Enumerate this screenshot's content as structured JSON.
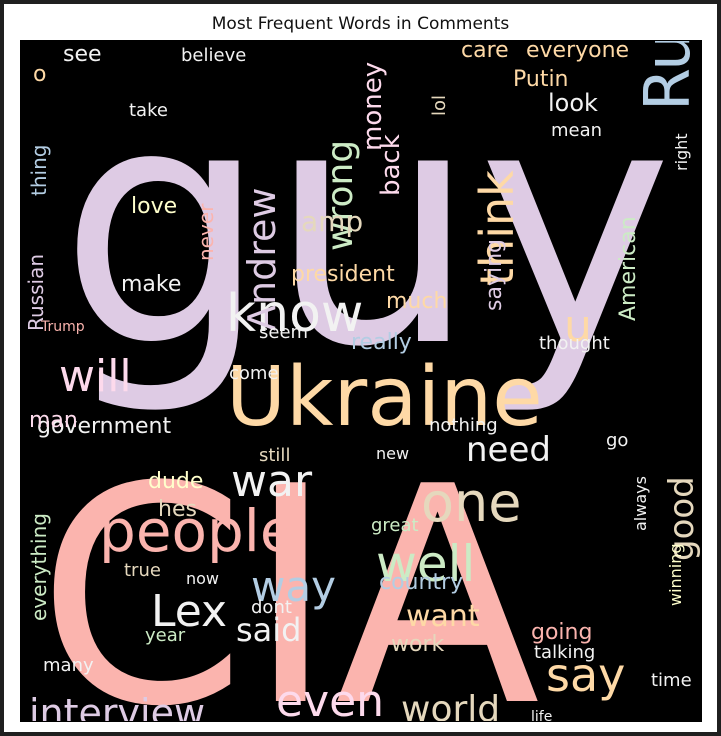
{
  "chart_data": {
    "type": "word_cloud",
    "title": "Most Frequent Words in Comments",
    "palette": [
      "#fbb4ae",
      "#b3cde3",
      "#ccebc5",
      "#decbe4",
      "#fed9a6",
      "#ffffcc",
      "#e5d8bd",
      "#fddaec",
      "#f2f2f2"
    ],
    "background": "#000000",
    "words": [
      {
        "text": "guy",
        "size": 330,
        "color": "#decbe4"
      },
      {
        "text": "CIA",
        "size": 300,
        "color": "#fbb4ae"
      },
      {
        "text": "Ukraine",
        "size": 82,
        "color": "#fed9a6"
      },
      {
        "text": "Russia",
        "size": 62,
        "color": "#b3cde3"
      },
      {
        "text": "people",
        "size": 58,
        "color": "#fbb4ae"
      },
      {
        "text": "know",
        "size": 52,
        "color": "#f2f2f2"
      },
      {
        "text": "one",
        "size": 54,
        "color": "#e5d8bd"
      },
      {
        "text": "well",
        "size": 50,
        "color": "#ccebc5"
      },
      {
        "text": "even",
        "size": 44,
        "color": "#fddaec"
      },
      {
        "text": "war",
        "size": 44,
        "color": "#f2f2f2"
      },
      {
        "text": "say",
        "size": 46,
        "color": "#fed9a6"
      },
      {
        "text": "think",
        "size": 46,
        "color": "#fed9a6"
      },
      {
        "text": "way",
        "size": 42,
        "color": "#b3cde3"
      },
      {
        "text": "will",
        "size": 44,
        "color": "#fddaec"
      },
      {
        "text": "Lex",
        "size": 44,
        "color": "#f2f2f2"
      },
      {
        "text": "Andrew",
        "size": 38,
        "color": "#decbe4"
      },
      {
        "text": "wrong",
        "size": 36,
        "color": "#ccebc5"
      },
      {
        "text": "world",
        "size": 36,
        "color": "#e5d8bd"
      },
      {
        "text": "interview",
        "size": 38,
        "color": "#decbe4"
      },
      {
        "text": "u",
        "size": 44,
        "color": "#fed9a6"
      },
      {
        "text": "good",
        "size": 34,
        "color": "#e5d8bd"
      },
      {
        "text": "need",
        "size": 34,
        "color": "#f2f2f2"
      },
      {
        "text": "said",
        "size": 32,
        "color": "#f2f2f2"
      },
      {
        "text": "want",
        "size": 30,
        "color": "#fed9a6"
      },
      {
        "text": "government",
        "size": 22,
        "color": "#f2f2f2"
      },
      {
        "text": "president",
        "size": 22,
        "color": "#fed9a6"
      },
      {
        "text": "amp",
        "size": 28,
        "color": "#e5d8bd"
      },
      {
        "text": "money",
        "size": 26,
        "color": "#fddaec"
      },
      {
        "text": "back",
        "size": 26,
        "color": "#fddaec"
      },
      {
        "text": "saying",
        "size": 22,
        "color": "#decbe4"
      },
      {
        "text": "American",
        "size": 22,
        "color": "#ccebc5"
      },
      {
        "text": "much",
        "size": 22,
        "color": "#fed9a6"
      },
      {
        "text": "look",
        "size": 24,
        "color": "#f2f2f2"
      },
      {
        "text": "Putin",
        "size": 22,
        "color": "#fed9a6"
      },
      {
        "text": "care",
        "size": 22,
        "color": "#fed9a6"
      },
      {
        "text": "everyone",
        "size": 22,
        "color": "#fed9a6"
      },
      {
        "text": "really",
        "size": 22,
        "color": "#b3cde3"
      },
      {
        "text": "dude",
        "size": 22,
        "color": "#ffffcc"
      },
      {
        "text": "hes",
        "size": 22,
        "color": "#e5d8bd"
      },
      {
        "text": "country",
        "size": 22,
        "color": "#b3cde3"
      },
      {
        "text": "going",
        "size": 22,
        "color": "#fbb4ae"
      },
      {
        "text": "work",
        "size": 22,
        "color": "#e5d8bd"
      },
      {
        "text": "man",
        "size": 22,
        "color": "#fddaec"
      },
      {
        "text": "everything",
        "size": 20,
        "color": "#ccebc5"
      },
      {
        "text": "make",
        "size": 22,
        "color": "#f2f2f2"
      },
      {
        "text": "love",
        "size": 22,
        "color": "#ffffcc"
      },
      {
        "text": "never",
        "size": 20,
        "color": "#fbb4ae"
      },
      {
        "text": "see",
        "size": 22,
        "color": "#f2f2f2"
      },
      {
        "text": "thing",
        "size": 20,
        "color": "#b3cde3"
      },
      {
        "text": "Russian",
        "size": 20,
        "color": "#decbe4"
      },
      {
        "text": "take",
        "size": 18,
        "color": "#f2f2f2"
      },
      {
        "text": "believe",
        "size": 18,
        "color": "#f2f2f2"
      },
      {
        "text": "mean",
        "size": 18,
        "color": "#f2f2f2"
      },
      {
        "text": "right",
        "size": 16,
        "color": "#f2f2f2"
      },
      {
        "text": "lol",
        "size": 18,
        "color": "#e5d8bd"
      },
      {
        "text": "still",
        "size": 18,
        "color": "#e5d8bd"
      },
      {
        "text": "come",
        "size": 18,
        "color": "#f2f2f2"
      },
      {
        "text": "seem",
        "size": 18,
        "color": "#f2f2f2"
      },
      {
        "text": "thought",
        "size": 18,
        "color": "#f2f2f2"
      },
      {
        "text": "nothing",
        "size": 18,
        "color": "#f2f2f2"
      },
      {
        "text": "go",
        "size": 18,
        "color": "#f2f2f2"
      },
      {
        "text": "always",
        "size": 16,
        "color": "#f2f2f2"
      },
      {
        "text": "true",
        "size": 18,
        "color": "#e5d8bd"
      },
      {
        "text": "now",
        "size": 16,
        "color": "#f2f2f2"
      },
      {
        "text": "dont",
        "size": 18,
        "color": "#f2f2f2"
      },
      {
        "text": "year",
        "size": 18,
        "color": "#ccebc5"
      },
      {
        "text": "great",
        "size": 18,
        "color": "#ccebc5"
      },
      {
        "text": "talking",
        "size": 18,
        "color": "#f2f2f2"
      },
      {
        "text": "time",
        "size": 18,
        "color": "#f2f2f2"
      },
      {
        "text": "winning",
        "size": 16,
        "color": "#ffffcc"
      },
      {
        "text": "many",
        "size": 18,
        "color": "#f2f2f2"
      },
      {
        "text": "Trump",
        "size": 14,
        "color": "#fbb4ae"
      },
      {
        "text": "o",
        "size": 22,
        "color": "#fed9a6"
      },
      {
        "text": "new",
        "size": 16,
        "color": "#f2f2f2"
      },
      {
        "text": "life",
        "size": 14,
        "color": "#f2f2f2"
      }
    ]
  }
}
